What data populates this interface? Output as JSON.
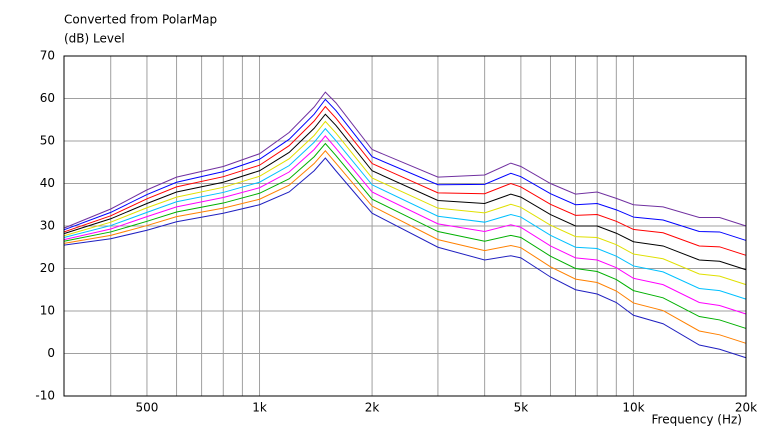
{
  "chart_data": {
    "type": "line",
    "title": "Converted from PolarMap",
    "y_label": "(dB)  Level",
    "x_label": "Frequency  (Hz)",
    "x_log_scale": true,
    "grid": true,
    "xlim": [
      300,
      20000
    ],
    "ylim": [
      -10,
      70
    ],
    "yticks": [
      -10,
      0,
      10,
      20,
      30,
      40,
      50,
      60,
      70
    ],
    "xticks": [
      {
        "value": 500,
        "label": "500"
      },
      {
        "value": 1000,
        "label": "1k"
      },
      {
        "value": 2000,
        "label": "2k"
      },
      {
        "value": 5000,
        "label": "5k"
      },
      {
        "value": 10000,
        "label": "10k"
      },
      {
        "value": 20000,
        "label": "20k"
      }
    ],
    "minor_xticks": [
      400,
      600,
      700,
      800,
      900,
      3000,
      4000,
      6000,
      7000,
      8000,
      9000
    ],
    "x": [
      300,
      400,
      500,
      600,
      800,
      1000,
      1200,
      1400,
      1500,
      1600,
      2000,
      3000,
      4000,
      4700,
      5000,
      6000,
      7000,
      8000,
      9000,
      10000,
      12000,
      15000,
      17000,
      20000
    ],
    "series": [
      {
        "color": "#7030a0",
        "values": [
          29.5,
          34,
          38.5,
          41.5,
          44,
          47,
          52,
          58,
          61.5,
          59,
          48,
          41.5,
          42,
          44.8,
          44,
          40,
          37.5,
          38,
          36.5,
          35,
          34.5,
          32,
          32,
          30
        ]
      },
      {
        "color": "#0000ff",
        "values": [
          29.1,
          33.2,
          37.4,
          40.3,
          42.8,
          45.7,
          50.4,
          56.3,
          59.8,
          57.2,
          46.3,
          39.7,
          39.8,
          42.4,
          41.6,
          37.6,
          35,
          35.3,
          33.8,
          32.1,
          31.4,
          28.7,
          28.6,
          26.6
        ]
      },
      {
        "color": "#ff0000",
        "values": [
          28.6,
          32.4,
          36.4,
          39.2,
          41.6,
          44.3,
          48.9,
          54.7,
          58.1,
          55.4,
          44.7,
          37.8,
          37.6,
          40,
          39.2,
          35.1,
          32.5,
          32.7,
          31.1,
          29.2,
          28.4,
          25.3,
          25.1,
          23.1
        ]
      },
      {
        "color": "#000000",
        "values": [
          28.2,
          31.7,
          35.3,
          38,
          40.3,
          43,
          47.3,
          53,
          56.3,
          53.7,
          43,
          36,
          35.3,
          37.5,
          36.8,
          32.7,
          30,
          30,
          28.3,
          26.3,
          25.3,
          22,
          21.7,
          19.7
        ]
      },
      {
        "color": "#e0e000",
        "values": [
          27.7,
          30.9,
          34.3,
          36.8,
          39.1,
          41.7,
          45.8,
          51.3,
          54.6,
          51.9,
          41.3,
          34.2,
          33.1,
          35.1,
          34.4,
          30.2,
          27.5,
          27.3,
          25.6,
          23.4,
          22.3,
          18.7,
          18.2,
          16.2
        ]
      },
      {
        "color": "#00c0ff",
        "values": [
          27.3,
          30.1,
          33.2,
          35.7,
          37.9,
          40.3,
          44.2,
          49.7,
          52.9,
          50.1,
          39.7,
          32.3,
          30.9,
          32.7,
          32.1,
          27.8,
          25,
          24.7,
          22.9,
          20.6,
          19.2,
          15.3,
          14.8,
          12.8
        ]
      },
      {
        "color": "#ff00ff",
        "values": [
          26.8,
          29.3,
          32.2,
          34.5,
          36.7,
          39,
          42.7,
          48,
          51.2,
          48.3,
          38,
          30.5,
          28.7,
          30.3,
          29.7,
          25.3,
          22.5,
          22,
          20.2,
          17.7,
          16.2,
          12,
          11.3,
          9.3
        ]
      },
      {
        "color": "#00b000",
        "values": [
          26.4,
          28.6,
          31.1,
          33.3,
          35.4,
          37.7,
          41.1,
          46.3,
          49.4,
          46.6,
          36.3,
          28.7,
          26.4,
          27.8,
          27.3,
          22.9,
          20,
          19.3,
          17.4,
          14.8,
          13.1,
          8.7,
          7.9,
          5.9
        ]
      },
      {
        "color": "#ff8000",
        "values": [
          25.9,
          27.8,
          30.1,
          32.2,
          34.2,
          36.3,
          39.6,
          44.7,
          47.7,
          44.8,
          34.7,
          26.8,
          24.2,
          25.4,
          24.9,
          20.4,
          17.5,
          16.7,
          14.7,
          11.9,
          10.1,
          5.3,
          4.4,
          2.4
        ]
      },
      {
        "color": "#2020c0",
        "values": [
          25.5,
          27,
          29,
          31,
          33,
          35,
          38,
          43,
          46,
          43,
          33,
          25,
          22,
          23,
          22.5,
          18,
          15,
          14,
          12,
          9,
          7,
          2,
          1,
          -1
        ]
      }
    ]
  }
}
